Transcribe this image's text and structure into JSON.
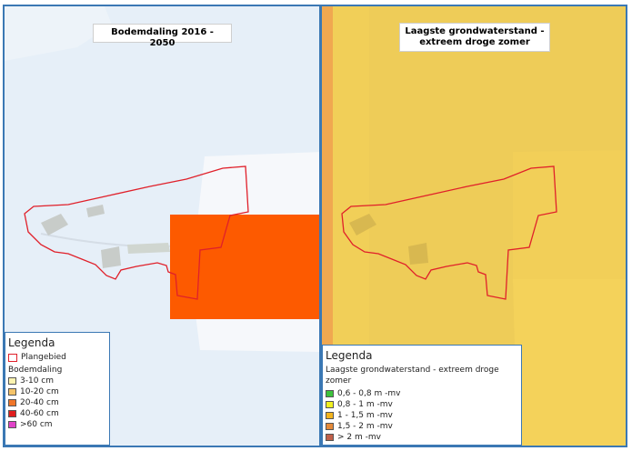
{
  "left_map": {
    "title": "Bodemdaling 2016 - 2050",
    "legend": {
      "title": "Legenda",
      "boundary_label": "Plangebied",
      "boundary_color": "#e0202a",
      "heading": "Bodemdaling",
      "items": [
        {
          "label": "3-10 cm",
          "color": "#fbf3b0"
        },
        {
          "label": "10-20 cm",
          "color": "#f4c36a"
        },
        {
          "label": "20-40 cm",
          "color": "#f0762a"
        },
        {
          "label": "40-60 cm",
          "color": "#e01e1e"
        },
        {
          "label": ">60 cm",
          "color": "#e043c8"
        }
      ]
    }
  },
  "right_map": {
    "title_line1": "Laagste grondwaterstand -",
    "title_line2": "extreem droge zomer",
    "legend": {
      "title": "Legenda",
      "heading": "Laagste grondwaterstand - extreem droge zomer",
      "items": [
        {
          "label": "0,6 - 0,8 m -mv",
          "color": "#3cc23c"
        },
        {
          "label": "0,8 - 1 m -mv",
          "color": "#f0f020"
        },
        {
          "label": "1 - 1,5 m -mv",
          "color": "#f2b41e"
        },
        {
          "label": "1,5 - 2 m -mv",
          "color": "#e48a3a"
        },
        {
          "label": "> 2 m -mv",
          "color": "#c0604a"
        }
      ]
    }
  }
}
